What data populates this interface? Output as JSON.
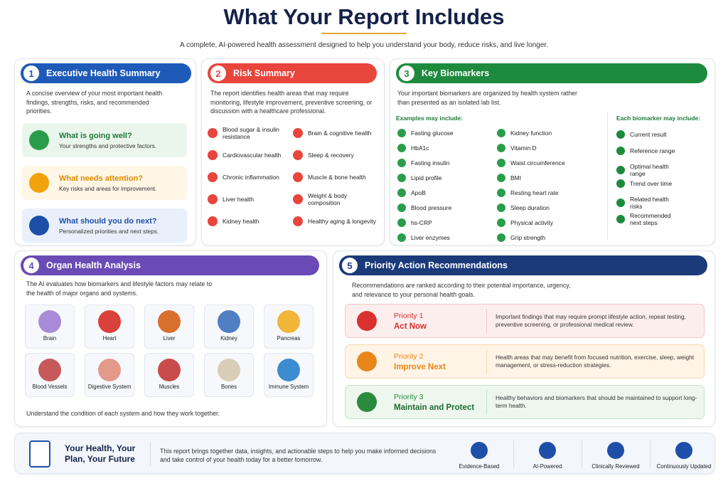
{
  "header": {
    "title": "What Your Report Includes",
    "subtitle": "A complete, AI-powered health assessment designed to help you understand your body, reduce risks, and live longer."
  },
  "sections": [
    {
      "number": "1",
      "title": "Executive Health Summary",
      "intro": "A concise overview of your most important health findings, strengths, risks, and recommended priorities.",
      "items": [
        {
          "title": "What is going well?",
          "text": "Your strengths and protective factors."
        },
        {
          "title": "What needs attention?",
          "text": "Key risks and areas for improvement."
        },
        {
          "title": "What should you do next?",
          "text": "Personalized priorities and next steps."
        }
      ]
    },
    {
      "number": "2",
      "title": "Risk Summary",
      "intro": "The report identifies health areas that may require monitoring, lifestyle improvement, preventive screening, or discussion with a healthcare professional.",
      "items": [
        "Blood sugar & insulin resistance",
        "Brain & cognitive health",
        "Cardiovascular health",
        "Sleep & recovery",
        "Chronic inflammation",
        "Muscle & bone health",
        "Liver health",
        "Weight & body composition",
        "Kidney health",
        "Healthy aging & longevity"
      ]
    },
    {
      "number": "3",
      "title": "Key Biomarkers",
      "intro": "Your important biomarkers are organized by health system rather than presented as an isolated lab list.",
      "examples_label": "Examples may include:",
      "examples_left": [
        "Fasting glucose",
        "HbA1c",
        "Fasting insulin",
        "Lipid profile",
        "ApoB",
        "Blood pressure",
        "hs-CRP",
        "Liver enzymes"
      ],
      "examples_right": [
        "Kidney function",
        "Vitamin D",
        "Waist circumference",
        "BMI",
        "Resting heart rate",
        "Sleep duration",
        "Physical activity",
        "Grip strength"
      ],
      "each_label": "Each biomarker may include:",
      "each_items": [
        "Current result",
        "Reference range",
        "Optimal health range",
        "Trend over time",
        "Related health risks",
        "Recommended next steps"
      ]
    },
    {
      "number": "4",
      "title": "Organ Health Analysis",
      "intro": "The AI evaluates how biomarkers and lifestyle factors may relate to the health of major organs and systems.",
      "organs": [
        "Brain",
        "Heart",
        "Liver",
        "Kidney",
        "Pancreas",
        "Blood Vessels",
        "Digestive System",
        "Muscles",
        "Bones",
        "Immune System"
      ],
      "footer": "Understand the condition of each system and how they work together."
    },
    {
      "number": "5",
      "title": "Priority Action Recommendations",
      "intro": "Recommendations are ranked according to their potential importance, urgency, and relevance to your personal health goals.",
      "priorities": [
        {
          "label": "Priority 1",
          "title": "Act Now",
          "text": "Important findings that may require prompt lifestyle action, repeat testing, preventive screening, or professional medical review."
        },
        {
          "label": "Priority 2",
          "title": "Improve Next",
          "text": "Health areas that may benefit from focused nutrition, exercise, sleep, weight management, or stress-reduction strategies."
        },
        {
          "label": "Priority 3",
          "title": "Maintain and Protect",
          "text": "Healthy behaviors and biomarkers that should be maintained to support long-term health."
        }
      ]
    }
  ],
  "footer": {
    "title": "Your Health, Your Plan, Your Future",
    "text": "This report brings together data, insights, and actionable steps to help you make informed decisions and take control of your health today for a better tomorrow.",
    "badges": [
      "Evidence-Based",
      "AI-Powered",
      "Clinically Reviewed",
      "Continuously Updated"
    ]
  }
}
